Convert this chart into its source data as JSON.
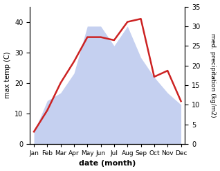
{
  "months": [
    "Jan",
    "Feb",
    "Mar",
    "Apr",
    "May",
    "Jun",
    "Jul",
    "Aug",
    "Sep",
    "Oct",
    "Nov",
    "Dec"
  ],
  "temperature": [
    4,
    11,
    20,
    27,
    35,
    35,
    34,
    40,
    41,
    22,
    24,
    14
  ],
  "precipitation": [
    3,
    11,
    13,
    18,
    30,
    30,
    25,
    30,
    22,
    17,
    13,
    10
  ],
  "temp_color": "#cc2222",
  "precip_fill_color": "#c5d0f0",
  "left_ylim": [
    0,
    45
  ],
  "right_ylim": [
    0,
    35
  ],
  "left_yticks": [
    0,
    10,
    20,
    30,
    40
  ],
  "right_yticks": [
    0,
    5,
    10,
    15,
    20,
    25,
    30,
    35
  ],
  "xlabel": "date (month)",
  "ylabel_left": "max temp (C)",
  "ylabel_right": "med. precipitation (kg/m2)",
  "figsize": [
    3.18,
    2.47
  ],
  "dpi": 100
}
